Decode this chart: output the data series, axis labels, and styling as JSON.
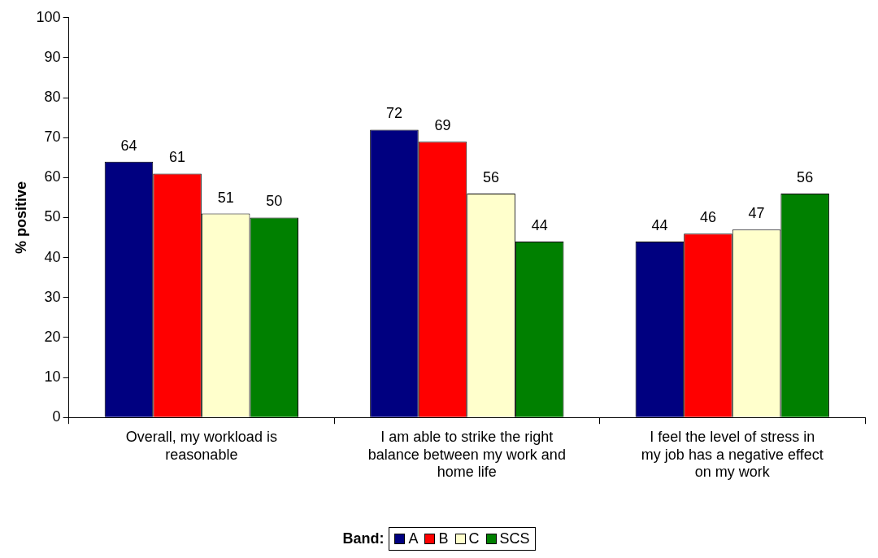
{
  "chart_data": {
    "type": "bar",
    "ylabel": "% positive",
    "legend_title": "Band:",
    "legend": "bottom",
    "data_labels": true,
    "grid": false,
    "categories": [
      "Overall, my workload is reasonable",
      "I am able to strike the right balance between my work and home life",
      "I feel the level of stress in my job has a negative effect on my work"
    ],
    "series": [
      {
        "name": "A",
        "color": "#000080",
        "values": [
          64,
          72,
          44
        ]
      },
      {
        "name": "B",
        "color": "#ff0000",
        "values": [
          61,
          69,
          46
        ]
      },
      {
        "name": "C",
        "color": "#ffffcc",
        "values": [
          51,
          56,
          47
        ]
      },
      {
        "name": "SCS",
        "color": "#008000",
        "values": [
          50,
          44,
          56
        ]
      }
    ],
    "ylim": [
      0,
      100
    ],
    "yticks": [
      0,
      10,
      20,
      30,
      40,
      50,
      60,
      70,
      80,
      90,
      100
    ]
  }
}
